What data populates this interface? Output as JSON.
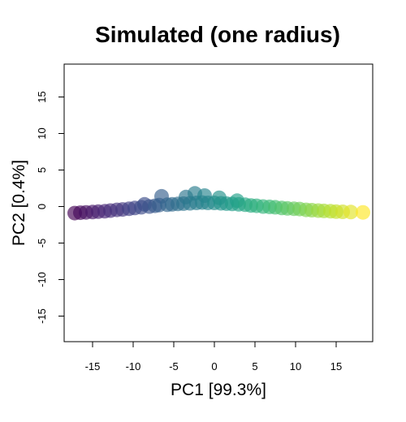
{
  "chart_data": {
    "type": "scatter",
    "title": "Simulated (one radius)",
    "xlabel": "PC1 [99.3%]",
    "ylabel": "PC2 [0.4%]",
    "xlim": [
      -18.5,
      19.5
    ],
    "ylim": [
      -18.5,
      19.5
    ],
    "xticks": [
      -15,
      -10,
      -5,
      0,
      5,
      10,
      15
    ],
    "yticks": [
      -15,
      -10,
      -5,
      0,
      5,
      10,
      15
    ],
    "grid": false,
    "legend": "none",
    "point_opacity": 0.65,
    "colormap": [
      "#440154",
      "#482878",
      "#3e4989",
      "#31688e",
      "#26828e",
      "#1f9e89",
      "#35b779",
      "#6ece58",
      "#b5de2b",
      "#fde725"
    ],
    "points": [
      {
        "x": -17.2,
        "y": -0.9
      },
      {
        "x": -16.5,
        "y": -0.85
      },
      {
        "x": -15.8,
        "y": -0.8
      },
      {
        "x": -15.0,
        "y": -0.75
      },
      {
        "x": -14.3,
        "y": -0.7
      },
      {
        "x": -13.5,
        "y": -0.65
      },
      {
        "x": -12.8,
        "y": -0.55
      },
      {
        "x": -12.0,
        "y": -0.45
      },
      {
        "x": -11.3,
        "y": -0.4
      },
      {
        "x": -10.5,
        "y": -0.3
      },
      {
        "x": -9.8,
        "y": -0.2
      },
      {
        "x": -9.0,
        "y": -0.1
      },
      {
        "x": -8.6,
        "y": 0.3
      },
      {
        "x": -8.0,
        "y": 0.0
      },
      {
        "x": -7.3,
        "y": 0.1
      },
      {
        "x": -6.8,
        "y": 0.2
      },
      {
        "x": -6.5,
        "y": 1.4
      },
      {
        "x": -5.8,
        "y": 0.25
      },
      {
        "x": -5.2,
        "y": 0.3
      },
      {
        "x": -4.5,
        "y": 0.35
      },
      {
        "x": -3.8,
        "y": 0.4
      },
      {
        "x": -3.5,
        "y": 1.3
      },
      {
        "x": -3.0,
        "y": 0.45
      },
      {
        "x": -2.4,
        "y": 1.8
      },
      {
        "x": -2.2,
        "y": 0.5
      },
      {
        "x": -1.5,
        "y": 0.55
      },
      {
        "x": -1.2,
        "y": 1.5
      },
      {
        "x": -0.8,
        "y": 0.5
      },
      {
        "x": 0.0,
        "y": 0.5
      },
      {
        "x": 0.6,
        "y": 1.2
      },
      {
        "x": 0.8,
        "y": 0.45
      },
      {
        "x": 1.5,
        "y": 0.4
      },
      {
        "x": 2.2,
        "y": 0.35
      },
      {
        "x": 2.8,
        "y": 0.8
      },
      {
        "x": 3.0,
        "y": 0.3
      },
      {
        "x": 3.8,
        "y": 0.25
      },
      {
        "x": 4.5,
        "y": 0.15
      },
      {
        "x": 5.2,
        "y": 0.1
      },
      {
        "x": 6.0,
        "y": 0.0
      },
      {
        "x": 6.8,
        "y": -0.05
      },
      {
        "x": 7.5,
        "y": -0.1
      },
      {
        "x": 8.3,
        "y": -0.2
      },
      {
        "x": 9.0,
        "y": -0.25
      },
      {
        "x": 9.8,
        "y": -0.3
      },
      {
        "x": 10.5,
        "y": -0.35
      },
      {
        "x": 11.3,
        "y": -0.45
      },
      {
        "x": 12.0,
        "y": -0.5
      },
      {
        "x": 12.8,
        "y": -0.55
      },
      {
        "x": 13.5,
        "y": -0.6
      },
      {
        "x": 14.3,
        "y": -0.65
      },
      {
        "x": 15.0,
        "y": -0.7
      },
      {
        "x": 15.8,
        "y": -0.72
      },
      {
        "x": 16.8,
        "y": -0.75
      },
      {
        "x": 18.3,
        "y": -0.8
      }
    ]
  }
}
